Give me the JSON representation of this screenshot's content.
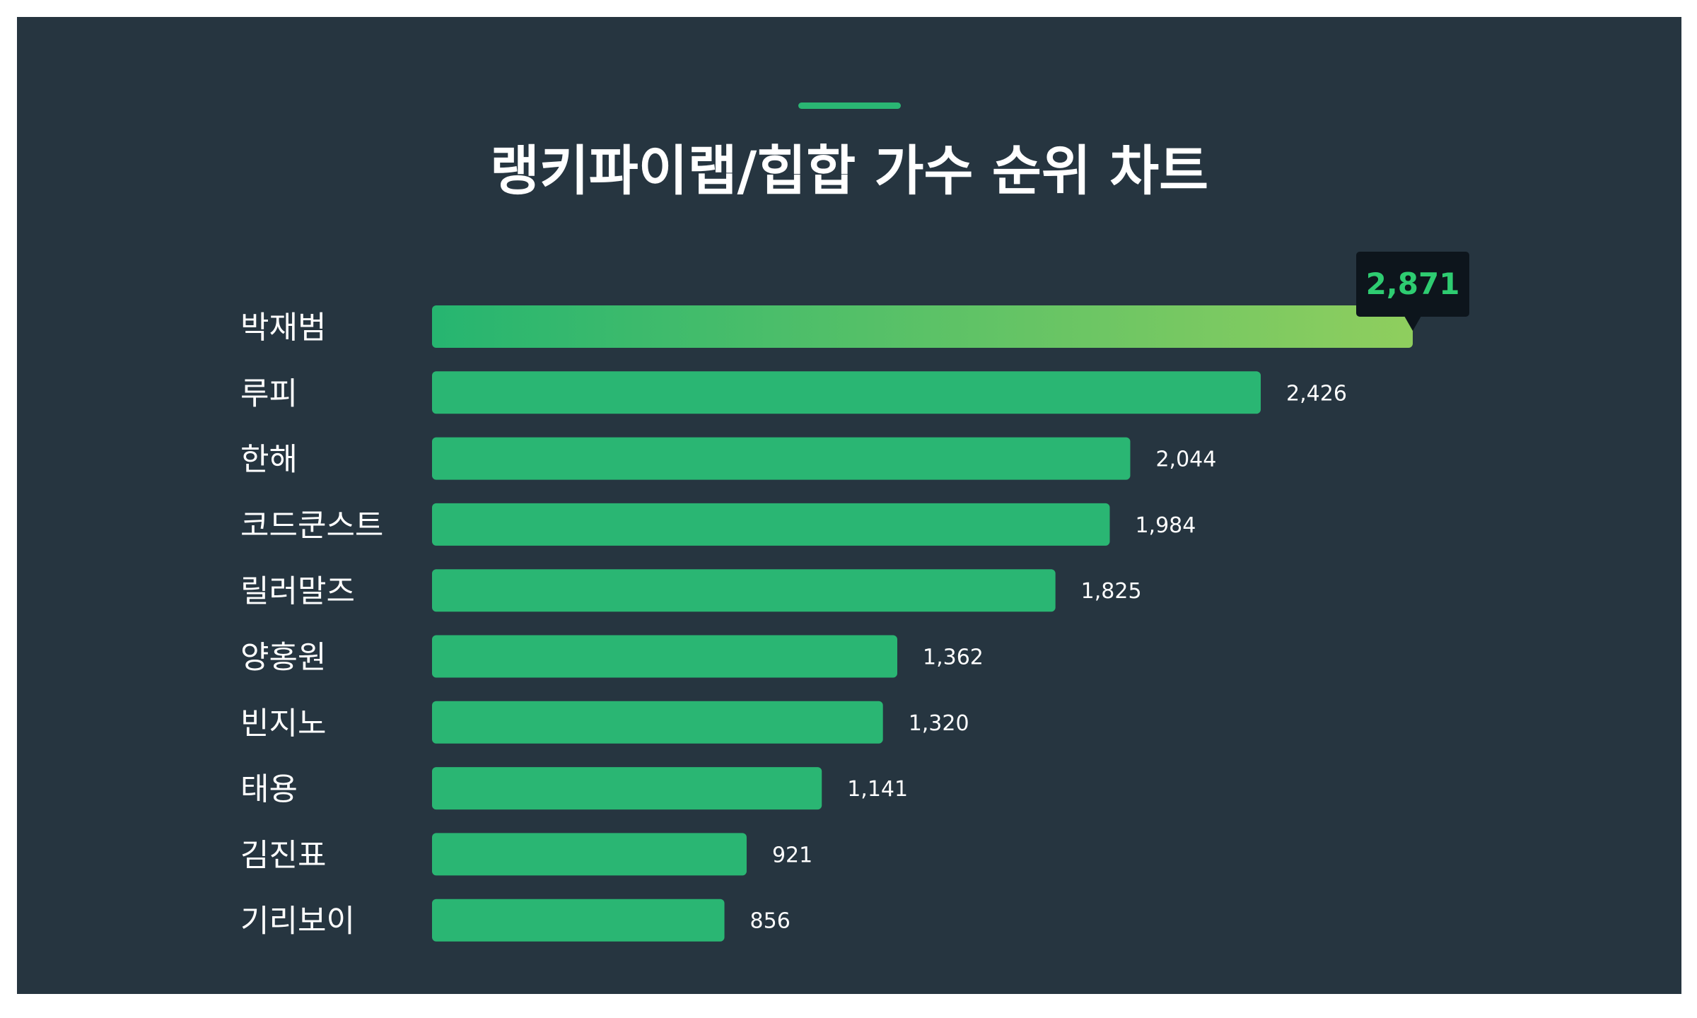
{
  "chart_data": {
    "type": "bar",
    "orientation": "horizontal",
    "title": "랭키파이랩/힙합 가수 순위 차트",
    "categories": [
      "박재범",
      "루피",
      "한해",
      "코드쿤스트",
      "릴러말즈",
      "양홍원",
      "빈지노",
      "태용",
      "김진표",
      "기리보이"
    ],
    "values": [
      2871,
      2426,
      2044,
      1984,
      1825,
      1362,
      1320,
      1141,
      921,
      856
    ],
    "value_labels": [
      "2,871",
      "2,426",
      "2,044",
      "1,984",
      "1,825",
      "1,362",
      "1,320",
      "1,141",
      "921",
      "856"
    ],
    "highlight": {
      "index": 0,
      "label": "2,871"
    },
    "xlim": [
      0,
      2871
    ],
    "grid": false,
    "legend": "none"
  },
  "colors": {
    "background": "#263540",
    "bar": "#2ab673",
    "highlight_gradient_start": "#26b570",
    "highlight_gradient_end": "#8fce5e",
    "highlight_text": "#2ecc71",
    "tooltip_bg": "#0d151c",
    "text": "#ffffff"
  }
}
